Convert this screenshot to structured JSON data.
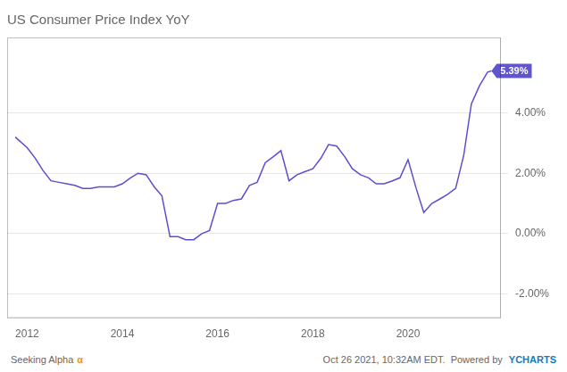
{
  "chart_data": {
    "type": "line",
    "title": "US Consumer Price Index YoY",
    "x": [
      2011.75,
      2012.0,
      2012.17,
      2012.33,
      2012.5,
      2012.67,
      2012.83,
      2013.0,
      2013.17,
      2013.33,
      2013.5,
      2013.67,
      2013.83,
      2014.0,
      2014.17,
      2014.33,
      2014.5,
      2014.67,
      2014.83,
      2015.0,
      2015.17,
      2015.33,
      2015.5,
      2015.67,
      2015.83,
      2016.0,
      2016.17,
      2016.33,
      2016.5,
      2016.67,
      2016.83,
      2017.0,
      2017.17,
      2017.33,
      2017.5,
      2017.67,
      2017.83,
      2018.0,
      2018.17,
      2018.33,
      2018.5,
      2018.67,
      2018.83,
      2019.0,
      2019.17,
      2019.33,
      2019.5,
      2019.67,
      2019.83,
      2020.0,
      2020.17,
      2020.33,
      2020.5,
      2020.67,
      2020.83,
      2021.0,
      2021.17,
      2021.33,
      2021.5,
      2021.67,
      2021.75
    ],
    "values": [
      0.032,
      0.0285,
      0.025,
      0.021,
      0.0175,
      0.017,
      0.0165,
      0.016,
      0.015,
      0.015,
      0.0155,
      0.0155,
      0.0155,
      0.0165,
      0.0185,
      0.02,
      0.0195,
      0.0155,
      0.0125,
      -0.001,
      -0.001,
      -0.002,
      -0.002,
      0.0,
      0.001,
      0.01,
      0.01,
      0.011,
      0.0115,
      0.016,
      0.017,
      0.0235,
      0.0255,
      0.0275,
      0.0175,
      0.0195,
      0.0205,
      0.0215,
      0.025,
      0.0295,
      0.029,
      0.0255,
      0.0215,
      0.0195,
      0.0185,
      0.0165,
      0.0165,
      0.0175,
      0.0185,
      0.0245,
      0.015,
      0.007,
      0.01,
      0.0115,
      0.013,
      0.015,
      0.026,
      0.043,
      0.049,
      0.0535,
      0.0539
    ],
    "color": "#5B4FCF",
    "xlim": [
      2011.58,
      2021.95
    ],
    "xticks": [
      2012,
      2014,
      2016,
      2018,
      2020
    ],
    "ylim": [
      -0.028,
      0.065
    ],
    "yticks": [
      {
        "value": -0.02,
        "label": "-2.00%"
      },
      {
        "value": 0.0,
        "label": "0.00%"
      },
      {
        "value": 0.02,
        "label": "2.00%"
      },
      {
        "value": 0.04,
        "label": "4.00%"
      }
    ],
    "grid": "y",
    "annotations": [
      {
        "text": "5.39%",
        "x": 2021.75,
        "y": 0.0539,
        "color": "#6054CF"
      }
    ],
    "footer": [
      {
        "text": "Seeking Alpha"
      },
      {
        "text": "α",
        "color": "#FF8C00"
      },
      {
        "text": "Oct 26 2021, 10:32AM EDT.  Powered by "
      },
      {
        "text": "YCHARTS",
        "color": "#1a7ab5"
      }
    ]
  }
}
